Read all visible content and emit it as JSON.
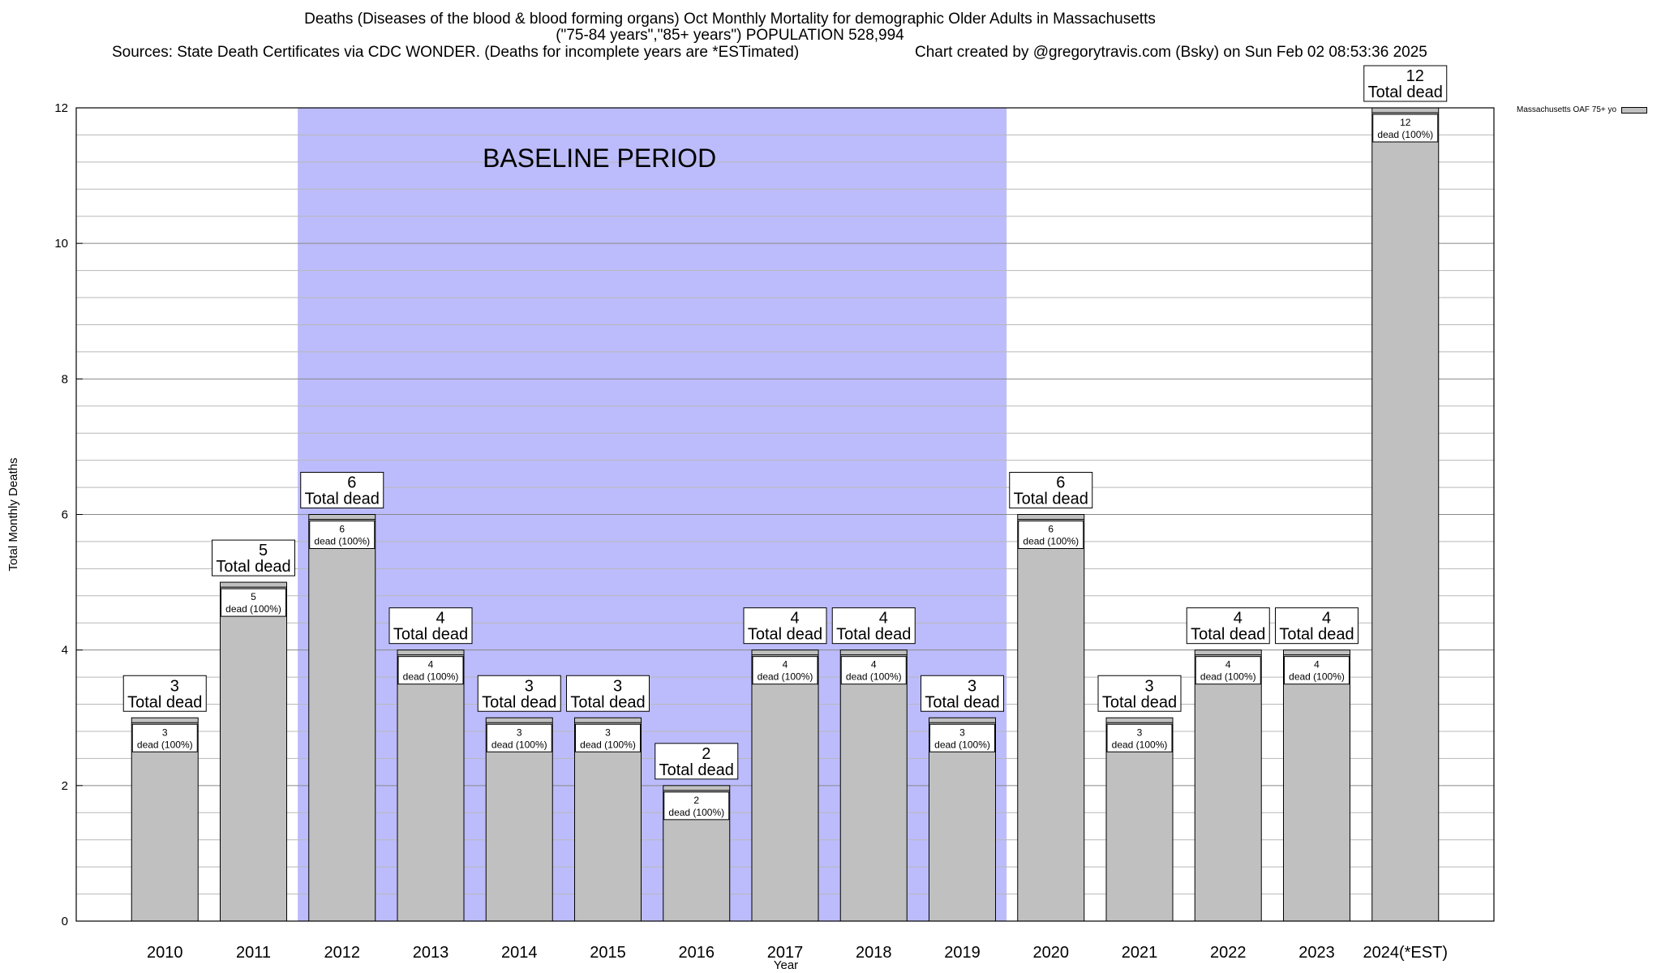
{
  "titles": {
    "line1": "Deaths (Diseases of the blood & blood forming organs) Oct Monthly Mortality for demographic Older Adults in Massachusetts",
    "line2": "(\"75-84 years\",\"85+ years\") POPULATION 528,994",
    "sources": "Sources: State Death Certificates via CDC WONDER. (Deaths for incomplete years are *ESTimated)",
    "credit": "Chart created by @gregorytravis.com (Bsky) on Sun Feb 02 08:53:36 2025"
  },
  "legend": {
    "label": "Massachusetts OAF 75+ yo"
  },
  "colors": {
    "bar": "#c0c0c0",
    "baseline": "#bcbcfc",
    "grid": "#aaaaaa"
  },
  "chart_data": {
    "type": "bar",
    "title": "Deaths (Diseases of the blood & blood forming organs) Oct Monthly Mortality for demographic Older Adults in Massachusetts",
    "xlabel": "Year",
    "ylabel": "Total Monthly Deaths",
    "ylim": [
      0,
      12
    ],
    "yticks": [
      0,
      2,
      4,
      6,
      8,
      10,
      12
    ],
    "categories": [
      "2010",
      "2011",
      "2012",
      "2013",
      "2014",
      "2015",
      "2016",
      "2017",
      "2018",
      "2019",
      "2020",
      "2021",
      "2022",
      "2023",
      "2024(*EST)"
    ],
    "series": [
      {
        "name": "Massachusetts OAF 75+ yo",
        "values": [
          3,
          5,
          6,
          4,
          3,
          3,
          2,
          4,
          4,
          3,
          6,
          3,
          4,
          4,
          12
        ]
      }
    ],
    "inner_labels": [
      "3",
      "5",
      "6",
      "4",
      "3",
      "3",
      "2",
      "4",
      "4",
      "3",
      "6",
      "3",
      "4",
      "4",
      "12"
    ],
    "inner_label_suffix": "dead (100%)",
    "total_label_suffix": "Total dead",
    "baseline": {
      "label": "BASELINE PERIOD",
      "start": "2012",
      "end": "2019"
    }
  }
}
